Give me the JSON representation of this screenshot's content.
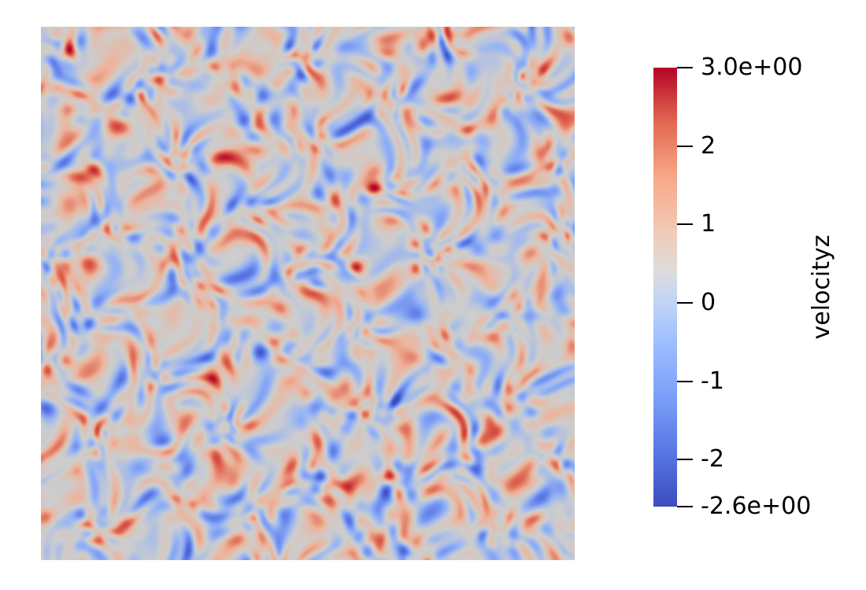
{
  "field": {
    "variable": "velocityz",
    "colormap": "coolwarm",
    "colors": [
      "#3b4cc0",
      "#8db0fe",
      "#dddddd",
      "#f4987a",
      "#b40426"
    ],
    "range": [
      -2.6,
      3.0
    ]
  },
  "colorbar": {
    "title": "velocityz",
    "max_label": "3.0e+00",
    "min_label": "-2.6e+00",
    "ticks": [
      {
        "value": 3.0,
        "label": "3.0e+00"
      },
      {
        "value": 2,
        "label": "2"
      },
      {
        "value": 1,
        "label": "1"
      },
      {
        "value": 0,
        "label": "0"
      },
      {
        "value": -1,
        "label": "-1"
      },
      {
        "value": -2,
        "label": "-2"
      },
      {
        "value": -2.6,
        "label": "-2.6e+00"
      }
    ]
  }
}
